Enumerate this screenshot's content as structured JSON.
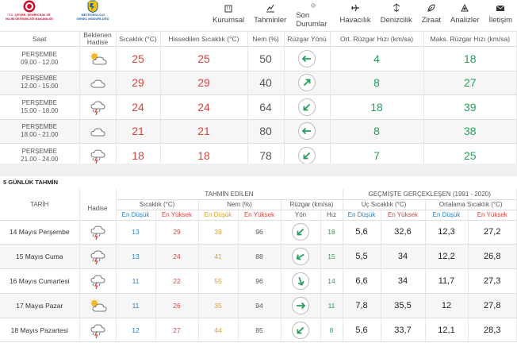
{
  "header": {
    "logo1": {
      "line1": "T.C. ÇEVRE, ŞEHİRCİLİK VE",
      "line2": "İKLİM DEĞİŞİKLİĞİ BAKANLIĞI"
    },
    "logo2": {
      "line1": "METEOROLOJİ",
      "line2": "GENEL MÜDÜRLÜĞÜ"
    },
    "nav": [
      {
        "label": "Kurumsal",
        "icon": "building-icon"
      },
      {
        "label": "Tahminler",
        "icon": "chart-icon"
      },
      {
        "label": "Son Durumlar",
        "icon": "clock-icon"
      },
      {
        "label": "Havacılık",
        "icon": "plane-icon"
      },
      {
        "label": "Denizcilik",
        "icon": "ship-icon"
      },
      {
        "label": "Ziraat",
        "icon": "leaf-icon"
      },
      {
        "label": "Analizler",
        "icon": "analysis-icon"
      },
      {
        "label": "İletişim",
        "icon": "mail-icon"
      }
    ]
  },
  "hourly": {
    "headers": {
      "time": "Saat",
      "weather_l1": "Beklenen",
      "weather_l2": "Hadise",
      "temp": "Sıcaklık (°C)",
      "feels": "Hissedilen Sıcaklık (°C)",
      "humidity": "Nem (%)",
      "wind_dir": "Rüzgar Yönü",
      "avg_wind": "Ort. Rüzgar Hızı (km/sa)",
      "max_wind": "Maks. Rüzgar Hızı (km/sa)"
    },
    "rows": [
      {
        "day": "PERŞEMBE",
        "range": "09.00 - 12.00",
        "weather": "partly-cloudy-icon",
        "temp": "25",
        "feels": "25",
        "humidity": "50",
        "wind_deg": 270,
        "avg": "4",
        "max": "18"
      },
      {
        "day": "PERŞEMBE",
        "range": "12.00 - 15.00",
        "weather": "cloudy-icon",
        "temp": "29",
        "feels": "29",
        "humidity": "40",
        "wind_deg": 45,
        "avg": "8",
        "max": "27"
      },
      {
        "day": "PERŞEMBE",
        "range": "15.00 - 18.00",
        "weather": "thunderstorm-icon",
        "temp": "24",
        "feels": "24",
        "humidity": "64",
        "wind_deg": 225,
        "avg": "18",
        "max": "39"
      },
      {
        "day": "PERŞEMBE",
        "range": "18.00 - 21.00",
        "weather": "cloudy-icon",
        "temp": "21",
        "feels": "21",
        "humidity": "80",
        "wind_deg": 270,
        "avg": "8",
        "max": "38"
      },
      {
        "day": "PERŞEMBE",
        "range": "21.00 - 24.00",
        "weather": "thunderstorm-icon",
        "temp": "18",
        "feels": "18",
        "humidity": "78",
        "wind_deg": 225,
        "avg": "7",
        "max": "25"
      }
    ]
  },
  "daily": {
    "title": "5 GÜNLÜK TAHMİN",
    "headers": {
      "date": "TARİH",
      "weather": "Hadise",
      "forecast": "TAHMİN EDİLEN",
      "history": "GEÇMİŞTE GERÇEKLEŞEN (1991 - 2020)",
      "temp": "Sıcaklık (°C)",
      "humidity": "Nem (%)",
      "wind": "Rüzgar (km/sa)",
      "extreme": "Uç Sıcaklık (°C)",
      "average": "Ortalama Sıcaklık (°C)",
      "low": "En Düşük",
      "high": "En Yüksek",
      "dir": "Yön",
      "speed": "Hız"
    },
    "rows": [
      {
        "date": "14 Mayıs Perşembe",
        "weather": "thunderstorm-icon",
        "tmin": "13",
        "tmax": "29",
        "hmin": "39",
        "hmax": "96",
        "wind_deg": 225,
        "speed": "18",
        "ext_lo": "5,6",
        "ext_hi": "32,6",
        "avg_lo": "12,3",
        "avg_hi": "27,2"
      },
      {
        "date": "15 Mayıs Cuma",
        "weather": "thunderstorm-icon",
        "tmin": "13",
        "tmax": "24",
        "hmin": "41",
        "hmax": "88",
        "wind_deg": 240,
        "speed": "15",
        "ext_lo": "5,5",
        "ext_hi": "34",
        "avg_lo": "12,2",
        "avg_hi": "26,8"
      },
      {
        "date": "16 Mayıs Cumartesi",
        "weather": "thunderstorm-icon",
        "tmin": "11",
        "tmax": "22",
        "hmin": "55",
        "hmax": "96",
        "wind_deg": 160,
        "speed": "14",
        "ext_lo": "6,6",
        "ext_hi": "34",
        "avg_lo": "11,7",
        "avg_hi": "27,3"
      },
      {
        "date": "17 Mayıs Pazar",
        "weather": "partly-cloudy-icon",
        "tmin": "11",
        "tmax": "26",
        "hmin": "35",
        "hmax": "94",
        "wind_deg": 90,
        "speed": "11",
        "ext_lo": "7,8",
        "ext_hi": "35,5",
        "avg_lo": "12",
        "avg_hi": "27,8"
      },
      {
        "date": "18 Mayıs Pazartesi",
        "weather": "thunderstorm-icon",
        "tmin": "12",
        "tmax": "27",
        "hmin": "44",
        "hmax": "85",
        "wind_deg": 225,
        "speed": "8",
        "ext_lo": "5,6",
        "ext_hi": "33,7",
        "avg_lo": "12,1",
        "avg_hi": "28,3"
      }
    ]
  }
}
